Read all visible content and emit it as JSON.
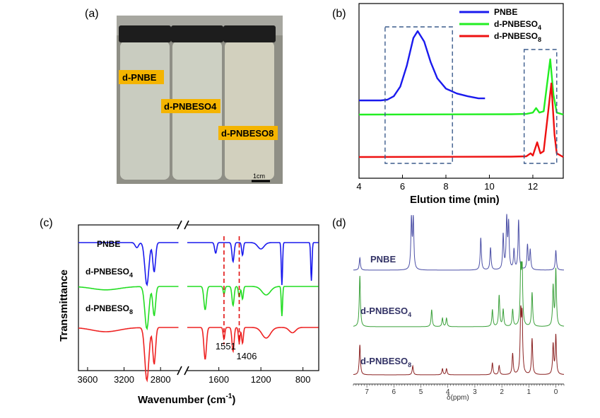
{
  "panels": {
    "a": "(a)",
    "b": "(b)",
    "c": "(c)",
    "d": "(d)"
  },
  "photo": {
    "labels": [
      "d-PNBE",
      "d-PNBESO4",
      "d-PNBESO8"
    ],
    "scale_bar": "1cm"
  },
  "chart_data": [
    {
      "id": "b",
      "type": "line",
      "xlabel": "Elution time (min)",
      "ylabel": "",
      "xlim": [
        4,
        13.4
      ],
      "xticks": [
        4,
        6,
        8,
        10,
        12
      ],
      "legend_placement": "top-right",
      "series": [
        {
          "name": "PNBE",
          "color": "#1a1aee",
          "x": [
            4.0,
            5.0,
            5.3,
            5.6,
            5.9,
            6.2,
            6.5,
            6.7,
            7.0,
            7.3,
            7.6,
            8.0,
            8.5,
            9.0,
            9.5,
            9.8
          ],
          "y": [
            0.0,
            0.0,
            0.01,
            0.06,
            0.2,
            0.5,
            0.9,
            1.0,
            0.85,
            0.55,
            0.32,
            0.17,
            0.1,
            0.06,
            0.03,
            0.03
          ]
        },
        {
          "name": "d-PNBESO4",
          "color": "#22ee22",
          "x": [
            4.0,
            11.0,
            11.7,
            12.0,
            12.15,
            12.3,
            12.5,
            12.65,
            12.8,
            12.95,
            13.1,
            13.4
          ],
          "y": [
            0.0,
            0.005,
            0.01,
            0.03,
            0.1,
            0.03,
            0.05,
            0.45,
            0.85,
            0.3,
            0.03,
            0.0
          ]
        },
        {
          "name": "d-PNBESO8",
          "color": "#ee1111",
          "x": [
            4.0,
            11.0,
            11.7,
            11.9,
            12.0,
            12.2,
            12.35,
            12.5,
            12.7,
            12.85,
            13.0,
            13.1,
            13.4
          ],
          "y": [
            0.0,
            0.005,
            0.01,
            0.05,
            0.02,
            0.2,
            0.05,
            0.08,
            0.6,
            1.0,
            0.3,
            0.05,
            0.0
          ]
        }
      ],
      "dashed_boxes": [
        {
          "x": [
            5.2,
            8.3
          ]
        },
        {
          "x": [
            11.6,
            13.1
          ]
        }
      ]
    },
    {
      "id": "c",
      "type": "line",
      "xlabel": "Wavenumber (cm-1)",
      "ylabel": "Transmittance",
      "xticks": [
        3600,
        3200,
        2800,
        1600,
        1200,
        800
      ],
      "axis_break_between": [
        2600,
        1900
      ],
      "annotations": [
        "1551",
        "1406"
      ],
      "series_labels": [
        "PNBE",
        "d-PNBESO4",
        "d-PNBESO8"
      ],
      "series": [
        {
          "name": "PNBE",
          "color": "#1a1aee"
        },
        {
          "name": "d-PNBESO4",
          "color": "#22dd22"
        },
        {
          "name": "d-PNBESO8",
          "color": "#ee2222"
        }
      ]
    },
    {
      "id": "d",
      "type": "line",
      "xlabel": "δ(ppm)",
      "xlim": [
        7.5,
        -0.3
      ],
      "xticks": [
        7,
        6,
        5,
        4,
        3,
        2,
        1,
        0
      ],
      "series": [
        {
          "name": "PNBE",
          "color": "#4b4fa6"
        },
        {
          "name": "d-PNBESO4",
          "color": "#3aa03a"
        },
        {
          "name": "d-PNBESO8",
          "color": "#8a2222"
        }
      ]
    }
  ]
}
